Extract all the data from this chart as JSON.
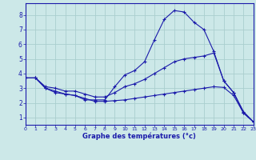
{
  "xlabel": "Graphe des températures (°c)",
  "bg_color": "#cce8e8",
  "grid_color": "#aacece",
  "line_color": "#1a1aaa",
  "x_ticks": [
    0,
    1,
    2,
    3,
    4,
    5,
    6,
    7,
    8,
    9,
    10,
    11,
    12,
    13,
    14,
    15,
    16,
    17,
    18,
    19,
    20,
    21,
    22,
    23
  ],
  "y_ticks": [
    1,
    2,
    3,
    4,
    5,
    6,
    7,
    8
  ],
  "xlim": [
    0,
    23
  ],
  "ylim": [
    0.5,
    8.8
  ],
  "line1": {
    "x": [
      0,
      1,
      2,
      3,
      4,
      5,
      6,
      7,
      8,
      9,
      10,
      11,
      12,
      13,
      14,
      15,
      16,
      17,
      18,
      19,
      20,
      21,
      22,
      23
    ],
    "y": [
      3.7,
      3.7,
      3.0,
      2.7,
      2.6,
      2.5,
      2.2,
      2.2,
      2.2,
      3.1,
      3.9,
      4.2,
      4.8,
      6.3,
      7.7,
      8.3,
      8.2,
      7.5,
      7.0,
      5.5,
      3.5,
      2.7,
      1.3,
      0.7
    ]
  },
  "line2": {
    "x": [
      0,
      1,
      2,
      3,
      4,
      5,
      6,
      7,
      8,
      9,
      10,
      11,
      12,
      13,
      14,
      15,
      16,
      17,
      18,
      19,
      20,
      21,
      22,
      23
    ],
    "y": [
      3.7,
      3.7,
      3.1,
      3.0,
      2.8,
      2.8,
      2.6,
      2.4,
      2.4,
      2.7,
      3.1,
      3.3,
      3.6,
      4.0,
      4.4,
      4.8,
      5.0,
      5.1,
      5.2,
      5.4,
      3.5,
      2.7,
      1.4,
      0.7
    ]
  },
  "line3": {
    "x": [
      0,
      1,
      2,
      3,
      4,
      5,
      6,
      7,
      8,
      9,
      10,
      11,
      12,
      13,
      14,
      15,
      16,
      17,
      18,
      19,
      20,
      21,
      22,
      23
    ],
    "y": [
      3.7,
      3.7,
      3.0,
      2.8,
      2.6,
      2.5,
      2.3,
      2.1,
      2.1,
      2.15,
      2.2,
      2.3,
      2.4,
      2.5,
      2.6,
      2.7,
      2.8,
      2.9,
      3.0,
      3.1,
      3.05,
      2.5,
      1.3,
      0.7
    ]
  }
}
